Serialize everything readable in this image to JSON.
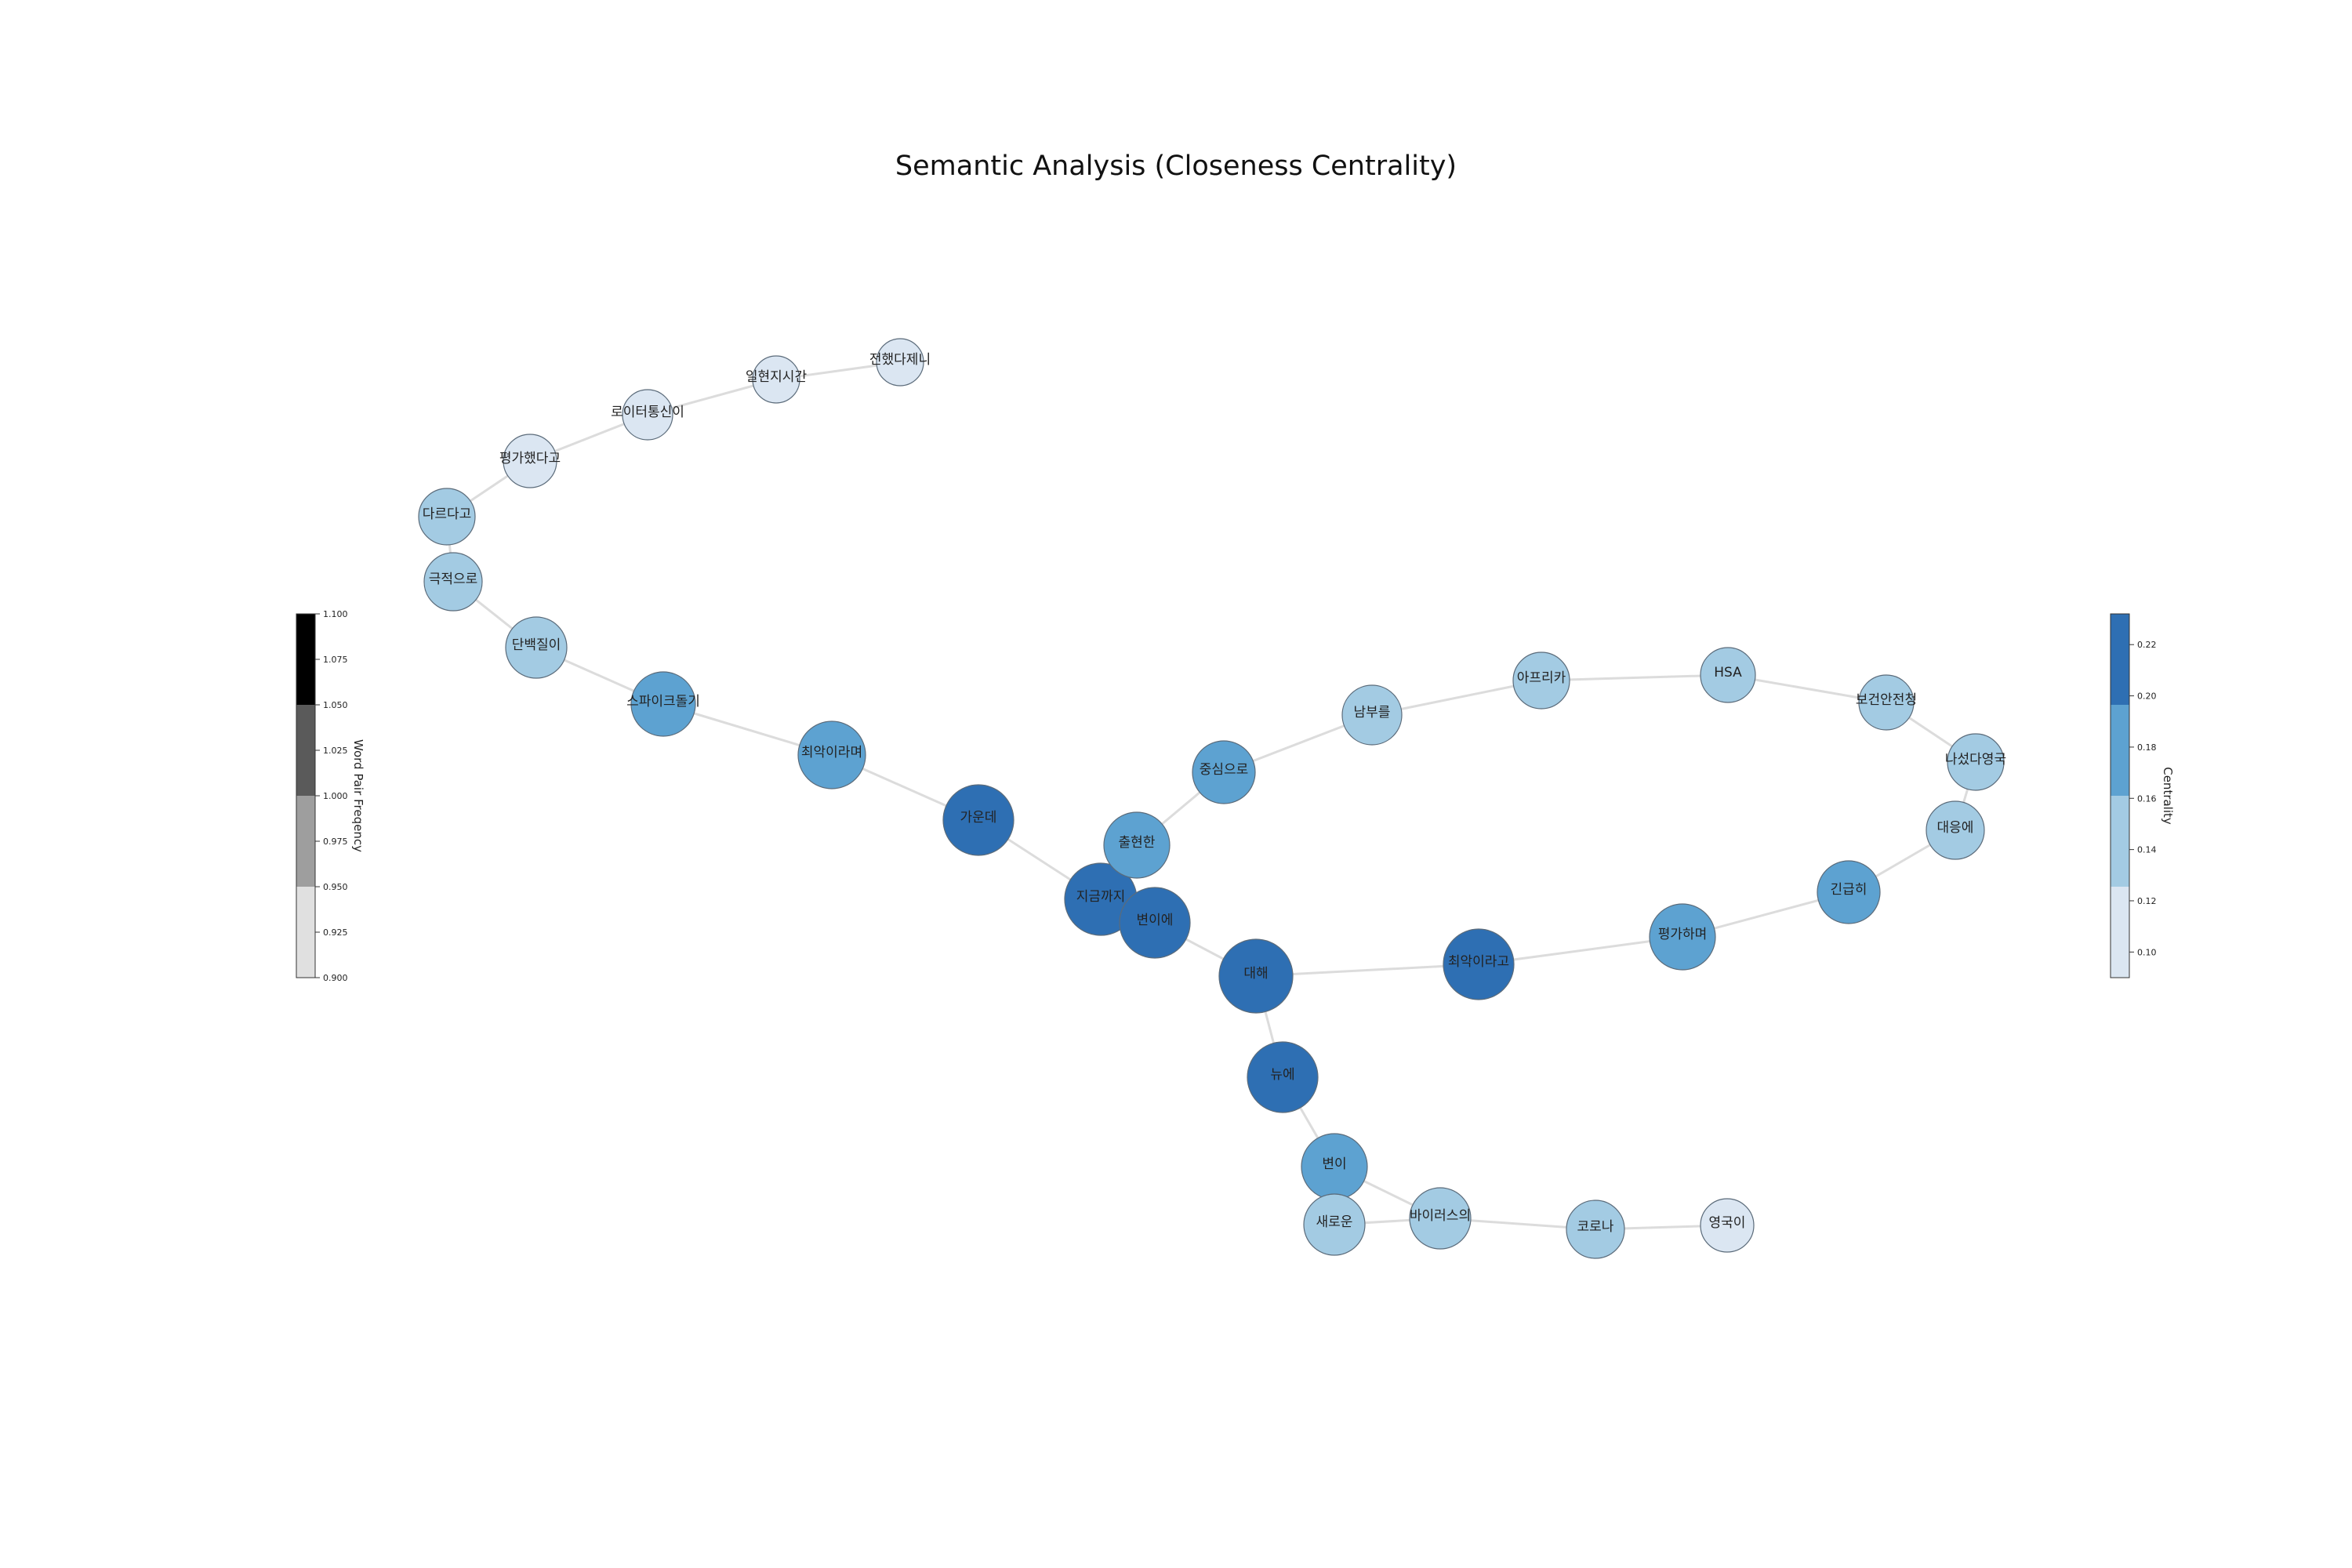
{
  "title": "Semantic Analysis (Closeness Centrality)",
  "colors": {
    "edge": "#dcdcdc",
    "centrality_bins": [
      "#dbe6f2",
      "#a3cbe3",
      "#5da2d1",
      "#2e6fb3"
    ],
    "frequency_bins": [
      "#e0e0e0",
      "#9e9e9e",
      "#5a5a5a",
      "#000000"
    ]
  },
  "colorbar_frequency": {
    "label": "Word Pair Freqency",
    "ticks": [
      "1.100",
      "1.075",
      "1.050",
      "1.025",
      "1.000",
      "0.975",
      "0.950",
      "0.925",
      "0.900"
    ]
  },
  "colorbar_centrality": {
    "label": "Centrality",
    "ticks": [
      "0.22",
      "0.20",
      "0.18",
      "0.16",
      "0.14",
      "0.12",
      "0.10"
    ]
  },
  "nodes": [
    {
      "id": "n1",
      "label": "전했다제니",
      "level": 0
    },
    {
      "id": "n2",
      "label": "일현지시간",
      "level": 0
    },
    {
      "id": "n3",
      "label": "로이터통신이",
      "level": 0
    },
    {
      "id": "n4",
      "label": "평가했다고",
      "level": 0
    },
    {
      "id": "n5",
      "label": "다르다고",
      "level": 1
    },
    {
      "id": "n6",
      "label": "극적으로",
      "level": 1
    },
    {
      "id": "n7",
      "label": "단백질이",
      "level": 1
    },
    {
      "id": "n8",
      "label": "스파이크돌기",
      "level": 2
    },
    {
      "id": "n9",
      "label": "최악이라며",
      "level": 2
    },
    {
      "id": "n10",
      "label": "가운데",
      "level": 3
    },
    {
      "id": "n11",
      "label": "지금까지",
      "level": 3
    },
    {
      "id": "n12",
      "label": "변이에",
      "level": 3
    },
    {
      "id": "n13",
      "label": "출현한",
      "level": 2
    },
    {
      "id": "n14",
      "label": "중심으로",
      "level": 2
    },
    {
      "id": "n15",
      "label": "남부를",
      "level": 1
    },
    {
      "id": "n16",
      "label": "아프리카",
      "level": 1
    },
    {
      "id": "n17",
      "label": "HSA",
      "level": 1
    },
    {
      "id": "n18",
      "label": "보건안전청",
      "level": 1
    },
    {
      "id": "n19",
      "label": "나섰다영국",
      "level": 1
    },
    {
      "id": "n20",
      "label": "대응에",
      "level": 1
    },
    {
      "id": "n21",
      "label": "긴급히",
      "level": 2
    },
    {
      "id": "n22",
      "label": "평가하며",
      "level": 2
    },
    {
      "id": "n23",
      "label": "최악이라고",
      "level": 3
    },
    {
      "id": "n24",
      "label": "대해",
      "level": 3
    },
    {
      "id": "n25",
      "label": "뉴에",
      "level": 3
    },
    {
      "id": "n26",
      "label": "변이",
      "level": 2
    },
    {
      "id": "n27",
      "label": "새로운",
      "level": 1
    },
    {
      "id": "n28",
      "label": "바이러스의",
      "level": 1
    },
    {
      "id": "n29",
      "label": "코로나",
      "level": 1
    },
    {
      "id": "n30",
      "label": "영국이",
      "level": 0
    }
  ],
  "edges": [
    [
      "n1",
      "n2"
    ],
    [
      "n2",
      "n3"
    ],
    [
      "n3",
      "n4"
    ],
    [
      "n4",
      "n5"
    ],
    [
      "n5",
      "n6"
    ],
    [
      "n6",
      "n7"
    ],
    [
      "n7",
      "n8"
    ],
    [
      "n8",
      "n9"
    ],
    [
      "n9",
      "n10"
    ],
    [
      "n10",
      "n11"
    ],
    [
      "n11",
      "n12"
    ],
    [
      "n11",
      "n13"
    ],
    [
      "n13",
      "n14"
    ],
    [
      "n14",
      "n15"
    ],
    [
      "n15",
      "n16"
    ],
    [
      "n16",
      "n17"
    ],
    [
      "n17",
      "n18"
    ],
    [
      "n18",
      "n19"
    ],
    [
      "n19",
      "n20"
    ],
    [
      "n20",
      "n21"
    ],
    [
      "n21",
      "n22"
    ],
    [
      "n22",
      "n23"
    ],
    [
      "n23",
      "n24"
    ],
    [
      "n12",
      "n24"
    ],
    [
      "n24",
      "n25"
    ],
    [
      "n25",
      "n26"
    ],
    [
      "n26",
      "n28"
    ],
    [
      "n27",
      "n28"
    ],
    [
      "n28",
      "n29"
    ],
    [
      "n29",
      "n30"
    ]
  ]
}
